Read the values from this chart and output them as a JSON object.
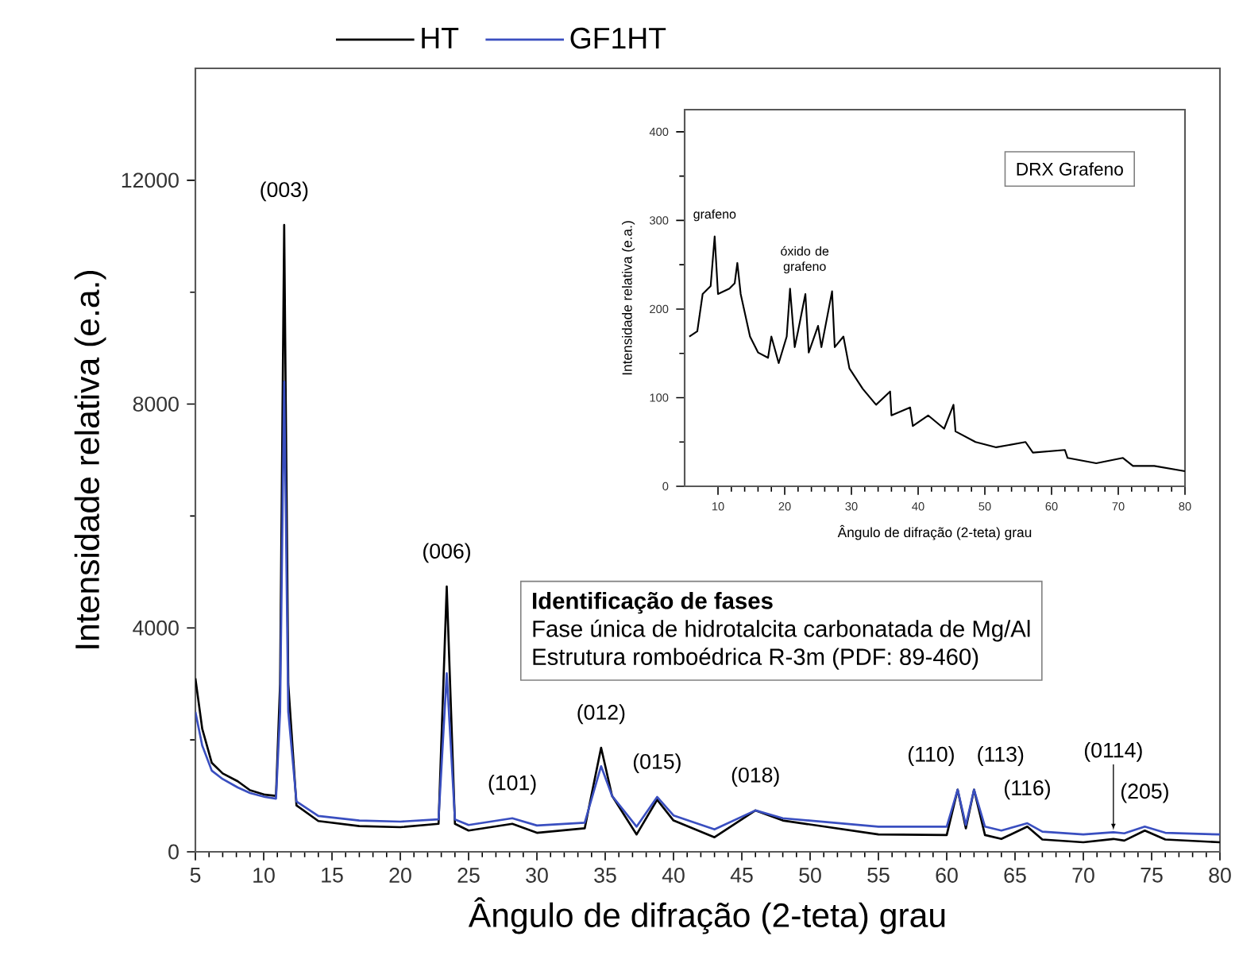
{
  "chart_data": [
    {
      "type": "line",
      "xlabel": "Ângulo de difração (2-teta) grau",
      "ylabel": "Intensidade relativa (e.a.)",
      "x": [
        5,
        5.5,
        6.2,
        7,
        8.1,
        9,
        10.1,
        10.9,
        11.2,
        11.5,
        11.8,
        12.4,
        14,
        17,
        20,
        22.8,
        23.4,
        24,
        25,
        28.2,
        30,
        33.5,
        34.7,
        35.5,
        37.3,
        38.8,
        40,
        43,
        46,
        48,
        55,
        60,
        60.8,
        61.4,
        62,
        62.8,
        64,
        65.9,
        67,
        70,
        72.2,
        73,
        74.5,
        76,
        80
      ],
      "series": [
        {
          "name": "HT",
          "color": "#000000",
          "values": [
            3100,
            2200,
            1590,
            1400,
            1260,
            1100,
            1020,
            1000,
            3000,
            11200,
            3000,
            830,
            550,
            460,
            440,
            500,
            4740,
            500,
            380,
            500,
            340,
            420,
            1860,
            1000,
            310,
            930,
            560,
            260,
            740,
            560,
            310,
            300,
            1110,
            420,
            1110,
            300,
            230,
            450,
            220,
            170,
            230,
            200,
            380,
            220,
            170
          ]
        },
        {
          "name": "GF1HT",
          "color": "#3a4fc0",
          "values": [
            2500,
            1900,
            1450,
            1300,
            1150,
            1050,
            980,
            950,
            2500,
            8400,
            2500,
            900,
            640,
            560,
            540,
            580,
            3190,
            580,
            480,
            600,
            470,
            520,
            1530,
            1000,
            450,
            980,
            650,
            400,
            740,
            600,
            450,
            450,
            1110,
            480,
            1110,
            450,
            380,
            510,
            360,
            310,
            350,
            330,
            450,
            340,
            310
          ]
        }
      ],
      "xlim": [
        5,
        80
      ],
      "ylim": [
        0,
        14000
      ],
      "xticks": [
        5,
        10,
        15,
        20,
        25,
        30,
        35,
        40,
        45,
        50,
        55,
        60,
        65,
        70,
        75,
        80
      ],
      "yticks": [
        0,
        4000,
        8000,
        12000
      ],
      "legend": "top",
      "grid": false,
      "marker": "none",
      "line_style": "solid",
      "annotations": [
        {
          "text": "(003)",
          "x": 11.5,
          "y": 11200
        },
        {
          "text": "(006)",
          "x": 23.4,
          "y": 4740
        },
        {
          "text": "(101)",
          "x": 28.2,
          "y": 600
        },
        {
          "text": "(012)",
          "x": 34.7,
          "y": 1860
        },
        {
          "text": "(015)",
          "x": 38.8,
          "y": 980
        },
        {
          "text": "(018)",
          "x": 46,
          "y": 740
        },
        {
          "text": "(110)",
          "x": 60.8,
          "y": 1110
        },
        {
          "text": "(113)",
          "x": 62,
          "y": 1110
        },
        {
          "text": "(116)",
          "x": 65.9,
          "y": 510
        },
        {
          "text": "(0114)",
          "x": 72.2,
          "y": 350
        },
        {
          "text": "(205)",
          "x": 74.5,
          "y": 450
        },
        "Identificação de fases",
        "Fase única de hidrotalcita carbonatada de Mg/Al",
        "Estrutura romboédrica R-3m (PDF: 89-460)"
      ]
    },
    {
      "type": "line",
      "xlabel": "Ângulo de difração (2-teta) grau",
      "ylabel": "Intensidade relativa (e.a.)",
      "series": [
        {
          "color": "#000000",
          "x": [
            5.7,
            6.9,
            7.7,
            8.9,
            9.5,
            10,
            11.7,
            12.5,
            12.9,
            13.4,
            14.8,
            16,
            17.5,
            18,
            19.1,
            20.3,
            20.8,
            21.5,
            22,
            23.1,
            23.6,
            25,
            25.5,
            27.1,
            27.5,
            28.8,
            29.7,
            31.7,
            33.7,
            35.8,
            36,
            38.8,
            39.2,
            41.5,
            43.9,
            45.3,
            45.6,
            48.6,
            51.7,
            56.1,
            57.2,
            62,
            62.4,
            66.7,
            70.7,
            72.2,
            75.4,
            80
          ],
          "values": [
            169,
            175,
            217,
            226,
            282,
            217,
            223,
            229,
            252,
            217,
            169,
            151,
            145,
            169,
            139,
            169,
            223,
            157,
            175,
            217,
            151,
            181,
            157,
            220,
            157,
            169,
            133,
            110,
            92,
            107,
            80,
            89,
            68,
            80,
            65,
            92,
            62,
            50,
            44,
            50,
            38,
            41,
            32,
            26,
            32,
            23,
            23,
            17
          ]
        }
      ],
      "xlim": [
        5,
        80
      ],
      "ylim": [
        0,
        425
      ],
      "xticks": [
        10,
        20,
        30,
        40,
        50,
        60,
        70,
        80
      ],
      "yticks": [
        0,
        100,
        200,
        300,
        400
      ],
      "grid": false,
      "marker": "none",
      "line_style": "solid",
      "annotations": [
        "DRX Grafeno",
        {
          "text": "grafeno",
          "x": 9.5,
          "y": 282
        },
        {
          "text": "óxido de grafeno",
          "x": 23,
          "y": 223
        }
      ]
    }
  ]
}
